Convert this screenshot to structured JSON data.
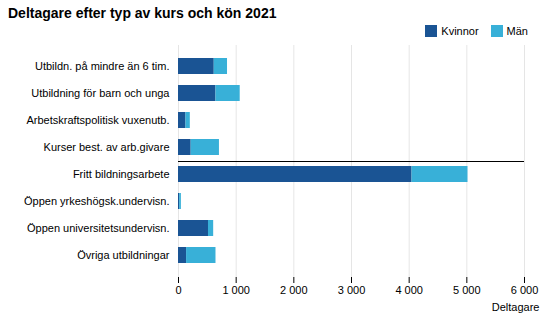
{
  "chart_data": {
    "type": "bar",
    "orientation": "horizontal",
    "stacked": true,
    "title": "Deltagare efter typ av kurs och kön 2021",
    "categories": [
      "Utbildn. på mindre än 6 tim.",
      "Utbildning för barn och unga",
      "Arbetskraftspolitisk vuxenutb.",
      "Kurser best. av arb.givare",
      "Fritt bildningsarbete",
      "Öppen yrkeshögsk.undervisn.",
      "Öppen universitetsundervisn.",
      "Övriga utbildningar"
    ],
    "series": [
      {
        "name": "Kvinnor",
        "color": "#1a5494",
        "values": [
          620,
          650,
          130,
          220,
          4050,
          20,
          520,
          140
        ]
      },
      {
        "name": "Män",
        "color": "#38b0d8",
        "values": [
          230,
          420,
          75,
          490,
          970,
          30,
          90,
          510
        ]
      }
    ],
    "xlabel": "Deltagare",
    "xlim": [
      0,
      6000
    ],
    "xticks": [
      0,
      {
        "value": 1000,
        "label": "1 000"
      },
      {
        "value": 2000,
        "label": "2 000"
      },
      {
        "value": 3000,
        "label": "3 000"
      },
      {
        "value": 4000,
        "label": "4 000"
      },
      {
        "value": 5000,
        "label": "5 000"
      },
      {
        "value": 6000,
        "label": "6 000"
      }
    ],
    "grid": "x",
    "legend": "upper right"
  }
}
